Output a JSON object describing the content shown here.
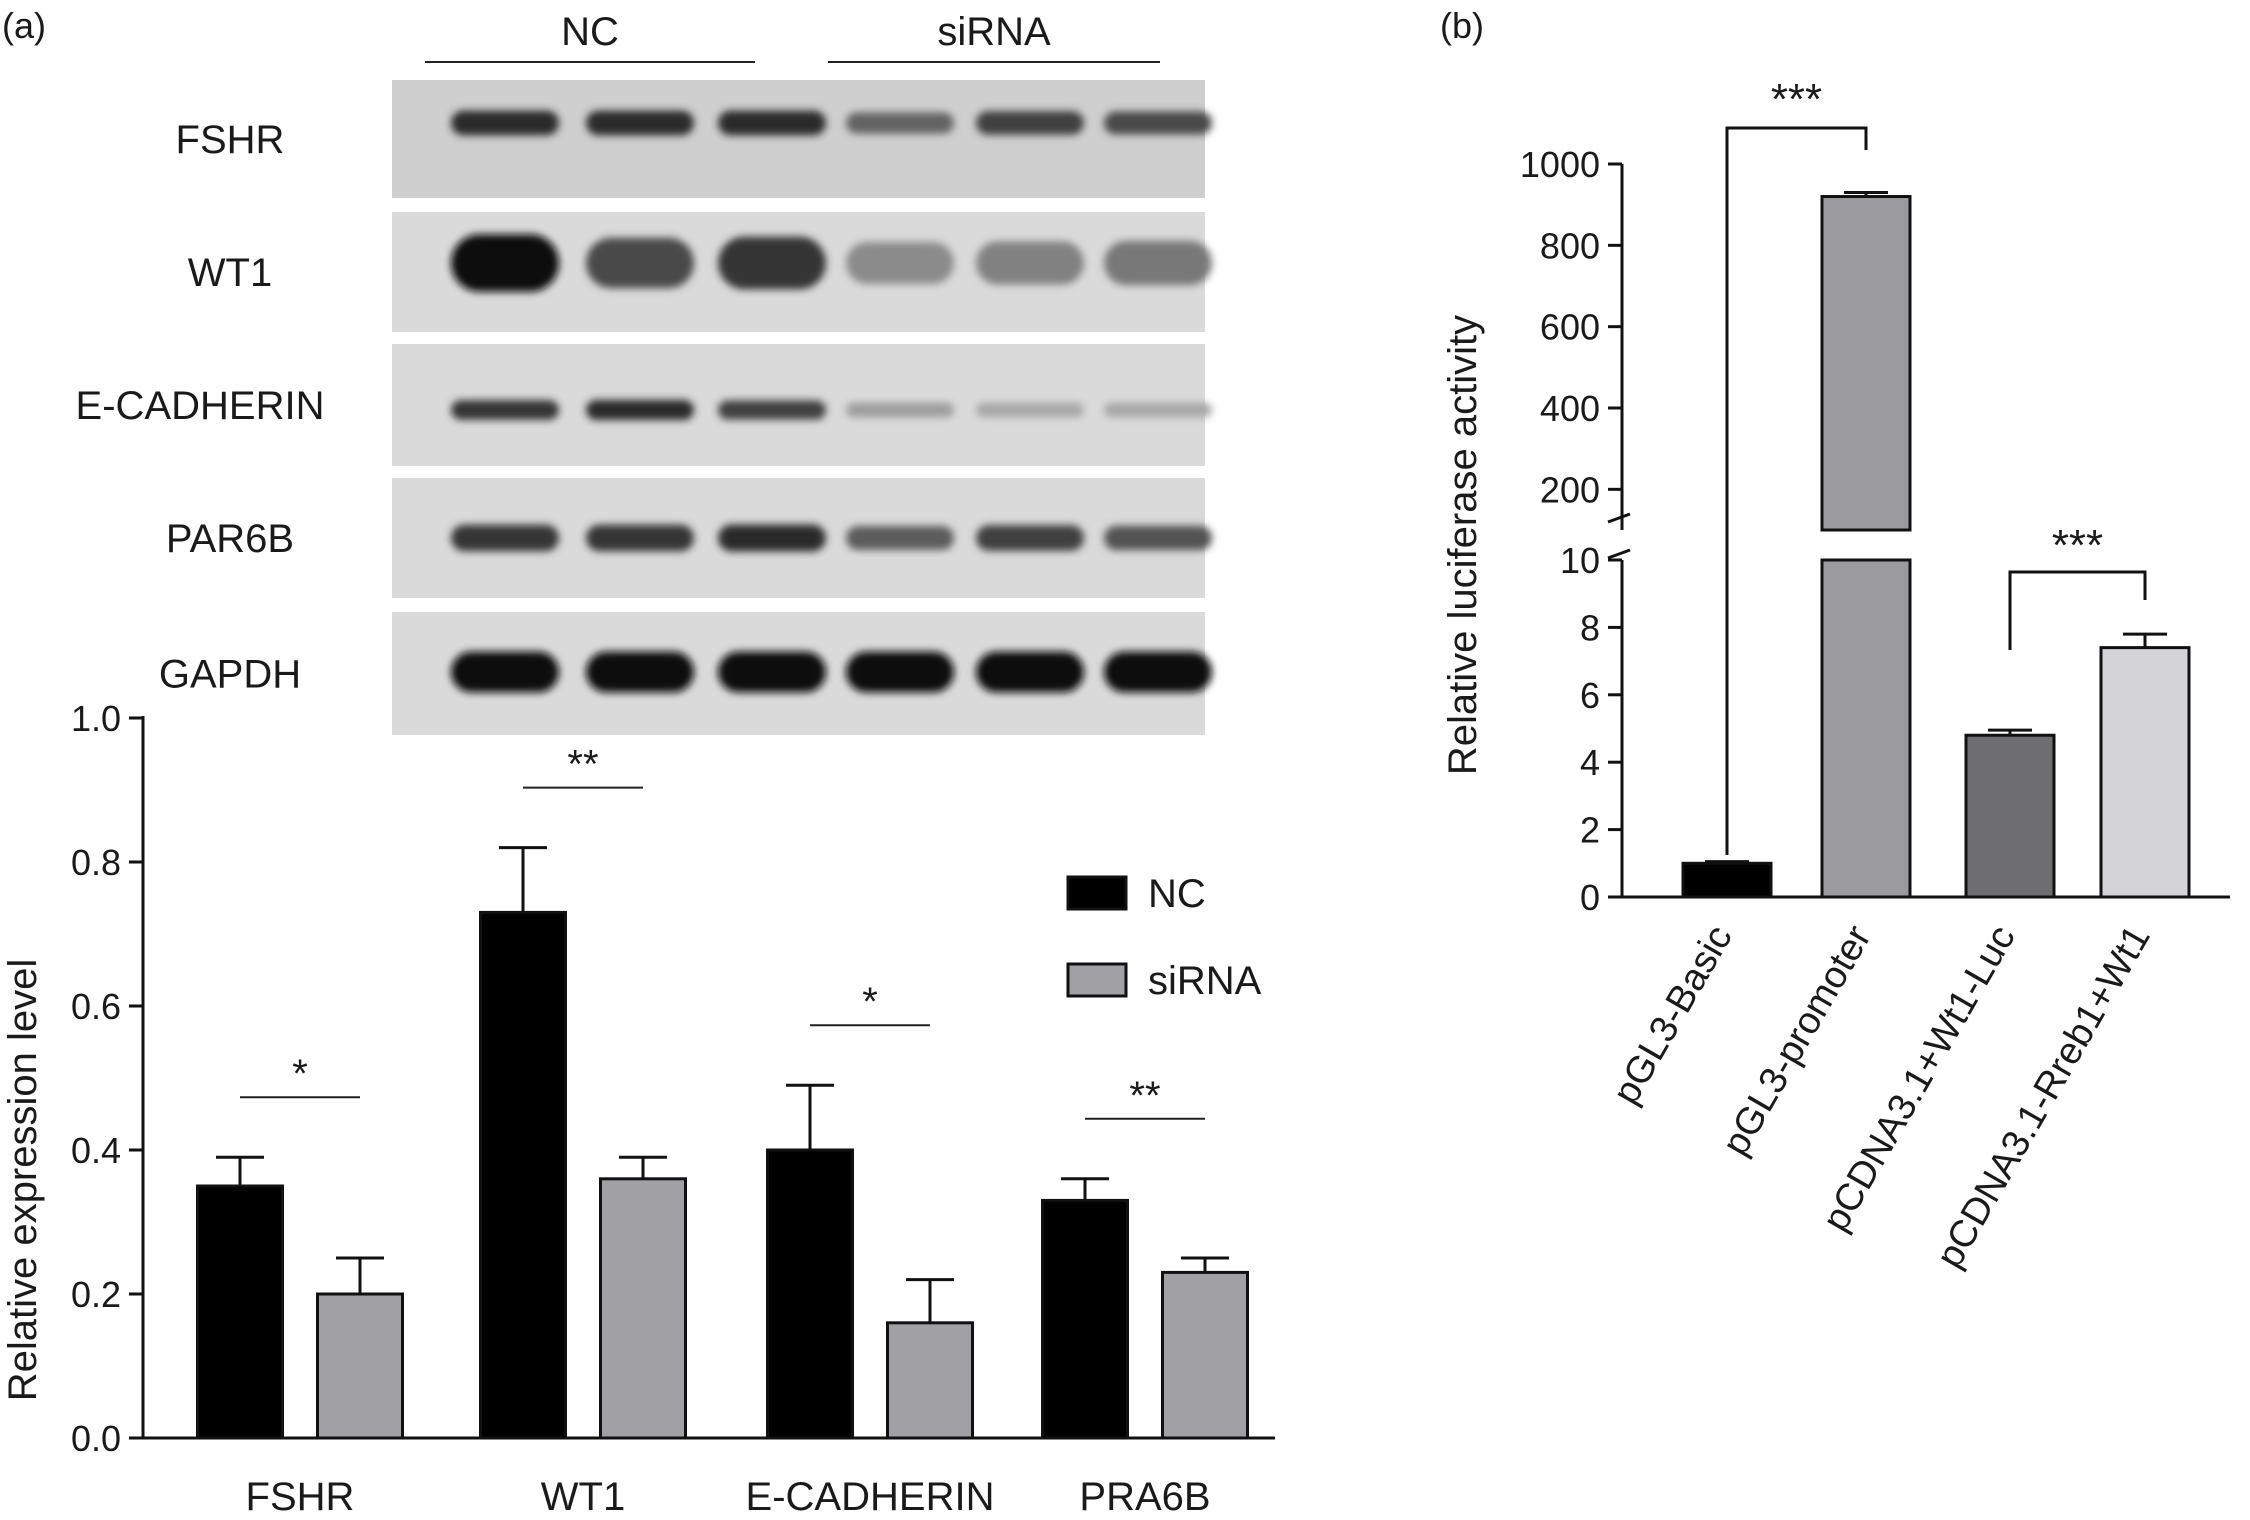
{
  "panel_a": {
    "label": "(a)",
    "blot": {
      "group_labels": [
        "NC",
        "siRNA"
      ],
      "rows": [
        {
          "name": "FSHR",
          "intensity": [
            0.85,
            0.85,
            0.85,
            0.55,
            0.75,
            0.7
          ]
        },
        {
          "name": "WT1",
          "intensity": [
            1.0,
            0.7,
            0.8,
            0.35,
            0.4,
            0.45
          ]
        },
        {
          "name": "E-CADHERIN",
          "intensity": [
            0.8,
            0.85,
            0.75,
            0.25,
            0.2,
            0.2
          ]
        },
        {
          "name": "PAR6B",
          "intensity": [
            0.8,
            0.8,
            0.85,
            0.6,
            0.75,
            0.65
          ]
        },
        {
          "name": "GAPDH",
          "intensity": [
            1.0,
            1.0,
            1.0,
            1.0,
            1.0,
            1.0
          ]
        }
      ]
    }
  },
  "panel_b": {
    "label": "(b)"
  },
  "chart_data": [
    {
      "type": "bar",
      "ylabel": "Relative expression level",
      "categories": [
        "FSHR",
        "WT1",
        "E-CADHERIN",
        "PRA6B"
      ],
      "ylim": [
        0,
        1.0
      ],
      "yticks": [
        "0.0",
        "0.2",
        "0.4",
        "0.6",
        "0.8",
        "1.0"
      ],
      "series": [
        {
          "name": "NC",
          "color": "#000000",
          "values": [
            0.35,
            0.73,
            0.4,
            0.33
          ],
          "errors": [
            0.04,
            0.09,
            0.09,
            0.03
          ]
        },
        {
          "name": "siRNA",
          "color": "#a0a0a5",
          "values": [
            0.2,
            0.36,
            0.16,
            0.23
          ],
          "errors": [
            0.05,
            0.03,
            0.06,
            0.02
          ]
        }
      ],
      "significance": [
        "*",
        "**",
        "*",
        "**"
      ],
      "legend": "top-right"
    },
    {
      "type": "bar",
      "ylabel": "Relative luciferase activity",
      "categories": [
        "pGL3-Basic",
        "pGL3-promoter",
        "pCDNA3.1+Wt1-Luc",
        "pCDNA3.1-Rreb1+Wt1"
      ],
      "values": [
        1.0,
        920,
        4.8,
        7.4
      ],
      "errors": [
        0.05,
        10,
        0.15,
        0.4
      ],
      "colors": [
        "#000000",
        "#9a9a9f",
        "#6e6e70",
        "#d4d4d6"
      ],
      "axis_break": {
        "lower": [
          0,
          10
        ],
        "upper": [
          100,
          1000
        ]
      },
      "yticks_lower": [
        "0",
        "2",
        "4",
        "6",
        "8",
        "10"
      ],
      "yticks_upper": [
        "200",
        "400",
        "600",
        "800",
        "1000"
      ],
      "comparisons": [
        {
          "from": "pGL3-Basic",
          "to": "pGL3-promoter",
          "label": "***"
        },
        {
          "from": "pCDNA3.1+Wt1-Luc",
          "to": "pCDNA3.1-Rreb1+Wt1",
          "label": "***"
        }
      ]
    }
  ]
}
